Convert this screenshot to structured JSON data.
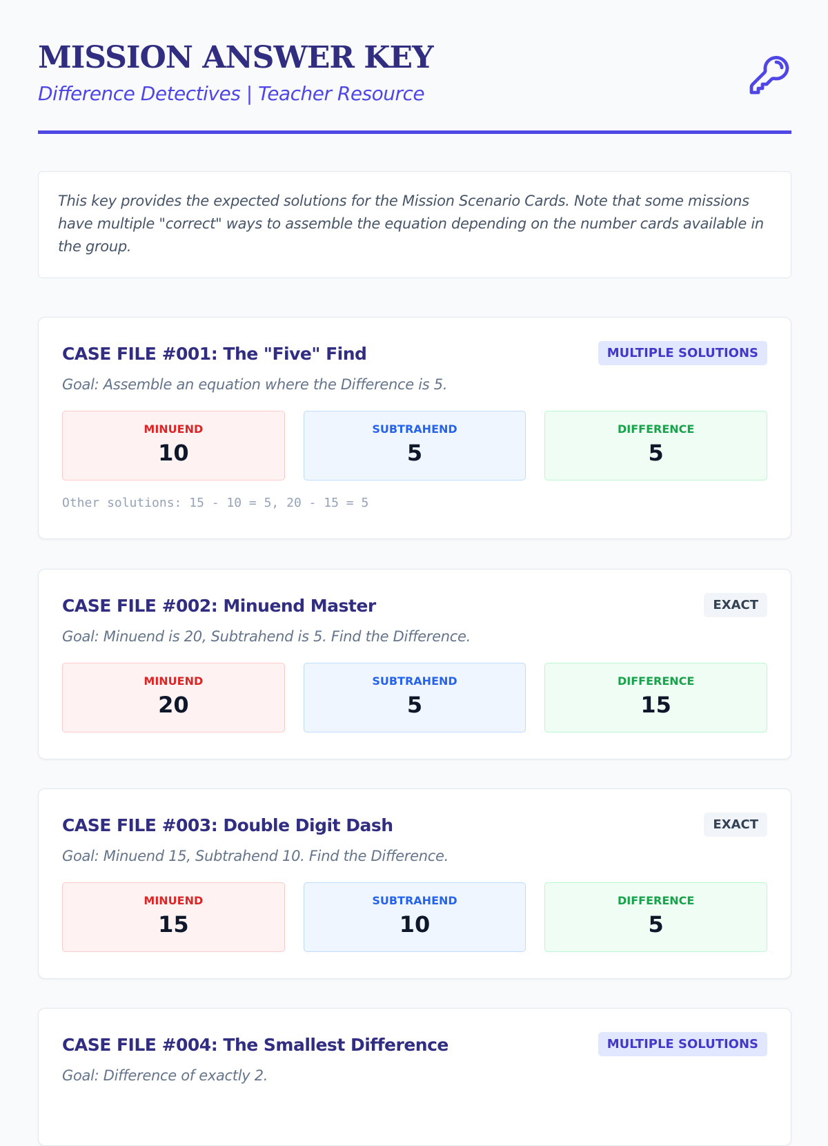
{
  "header": {
    "title": "MISSION ANSWER KEY",
    "subtitle": "Difference Detectives | Teacher Resource",
    "icon": "key-icon"
  },
  "intro": "This key provides the expected solutions for the Mission Scenario Cards. Note that some missions have multiple \"correct\" ways to assemble the equation depending on the number cards available in the group.",
  "labels": {
    "minuend": "MINUEND",
    "subtrahend": "SUBTRAHEND",
    "difference": "DIFFERENCE"
  },
  "cases": [
    {
      "title": "CASE FILE #001: The \"Five\" Find",
      "badge": "MULTIPLE SOLUTIONS",
      "goal": "Goal: Assemble an equation where the Difference is 5.",
      "minuend": "10",
      "subtrahend": "5",
      "difference": "5",
      "other": "Other solutions: 15 - 10 = 5, 20 - 15 = 5"
    },
    {
      "title": "CASE FILE #002: Minuend Master",
      "badge": "EXACT",
      "goal": "Goal: Minuend is 20, Subtrahend is 5. Find the Difference.",
      "minuend": "20",
      "subtrahend": "5",
      "difference": "15"
    },
    {
      "title": "CASE FILE #003: Double Digit Dash",
      "badge": "EXACT",
      "goal": "Goal: Minuend 15, Subtrahend 10. Find the Difference.",
      "minuend": "15",
      "subtrahend": "10",
      "difference": "5"
    },
    {
      "title": "CASE FILE #004: The Smallest Difference",
      "badge": "MULTIPLE SOLUTIONS",
      "goal": "Goal: Difference of exactly 2."
    }
  ],
  "colors": {
    "accent": "#4f46e5",
    "title": "#312e81",
    "minuend": "#dc2626",
    "subtrahend": "#2563eb",
    "difference": "#16a34a"
  }
}
